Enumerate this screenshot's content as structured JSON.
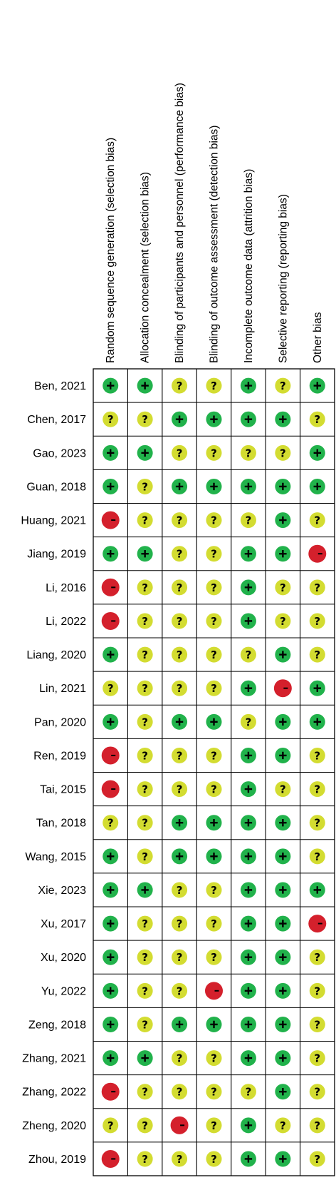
{
  "chart_data": {
    "type": "table",
    "columns": [
      "Random sequence generation (selection bias)",
      "Allocation concealment (selection bias)",
      "Blinding of participants and personnel (performance bias)",
      "Blinding of outcome assessment (detection bias)",
      "Incomplete outcome data (attrition bias)",
      "Selective reporting (reporting bias)",
      "Other bias"
    ],
    "rows": [
      {
        "study": "Ben, 2021",
        "ratings": [
          "+",
          "+",
          "?",
          "?",
          "+",
          "?",
          "+"
        ]
      },
      {
        "study": "Chen, 2017",
        "ratings": [
          "?",
          "?",
          "+",
          "+",
          "+",
          "+",
          "?"
        ]
      },
      {
        "study": "Gao, 2023",
        "ratings": [
          "+",
          "+",
          "?",
          "?",
          "?",
          "?",
          "+"
        ]
      },
      {
        "study": "Guan, 2018",
        "ratings": [
          "+",
          "?",
          "+",
          "+",
          "+",
          "+",
          "+"
        ]
      },
      {
        "study": "Huang, 2021",
        "ratings": [
          "-",
          "?",
          "?",
          "?",
          "?",
          "+",
          "?"
        ]
      },
      {
        "study": "Jiang, 2019",
        "ratings": [
          "+",
          "+",
          "?",
          "?",
          "+",
          "+",
          "-"
        ]
      },
      {
        "study": "Li, 2016",
        "ratings": [
          "-",
          "?",
          "?",
          "?",
          "+",
          "?",
          "?"
        ]
      },
      {
        "study": "Li, 2022",
        "ratings": [
          "-",
          "?",
          "?",
          "?",
          "+",
          "?",
          "?"
        ]
      },
      {
        "study": "Liang, 2020",
        "ratings": [
          "+",
          "?",
          "?",
          "?",
          "?",
          "+",
          "?"
        ]
      },
      {
        "study": "Lin, 2021",
        "ratings": [
          "?",
          "?",
          "?",
          "?",
          "+",
          "-",
          "+"
        ]
      },
      {
        "study": "Pan, 2020",
        "ratings": [
          "+",
          "?",
          "+",
          "+",
          "?",
          "+",
          "+"
        ]
      },
      {
        "study": "Ren, 2019",
        "ratings": [
          "-",
          "?",
          "?",
          "?",
          "+",
          "+",
          "?"
        ]
      },
      {
        "study": "Tai, 2015",
        "ratings": [
          "-",
          "?",
          "?",
          "?",
          "+",
          "?",
          "?"
        ]
      },
      {
        "study": "Tan, 2018",
        "ratings": [
          "?",
          "?",
          "+",
          "+",
          "+",
          "+",
          "?"
        ]
      },
      {
        "study": "Wang, 2015",
        "ratings": [
          "+",
          "?",
          "+",
          "+",
          "+",
          "+",
          "?"
        ]
      },
      {
        "study": "Xie, 2023",
        "ratings": [
          "+",
          "+",
          "?",
          "?",
          "+",
          "+",
          "+"
        ]
      },
      {
        "study": "Xu, 2017",
        "ratings": [
          "+",
          "?",
          "?",
          "?",
          "+",
          "+",
          "-"
        ]
      },
      {
        "study": "Xu, 2020",
        "ratings": [
          "+",
          "?",
          "?",
          "?",
          "+",
          "+",
          "?"
        ]
      },
      {
        "study": "Yu, 2022",
        "ratings": [
          "+",
          "?",
          "?",
          "-",
          "+",
          "+",
          "?"
        ]
      },
      {
        "study": "Zeng, 2018",
        "ratings": [
          "+",
          "?",
          "+",
          "+",
          "+",
          "+",
          "?"
        ]
      },
      {
        "study": "Zhang, 2021",
        "ratings": [
          "+",
          "+",
          "?",
          "?",
          "+",
          "+",
          "?"
        ]
      },
      {
        "study": "Zhang, 2022",
        "ratings": [
          "-",
          "?",
          "?",
          "?",
          "?",
          "+",
          "?"
        ]
      },
      {
        "study": "Zheng, 2020",
        "ratings": [
          "?",
          "?",
          "-",
          "?",
          "+",
          "?",
          "?"
        ]
      },
      {
        "study": "Zhou, 2019",
        "ratings": [
          "-",
          "?",
          "?",
          "?",
          "+",
          "+",
          "?"
        ]
      }
    ],
    "legend_symbols": {
      "+": "low risk",
      "?": "unclear risk",
      "-": "high risk"
    },
    "colors": {
      "low": "#21b24b",
      "unclear": "#d3dc31",
      "high": "#d4202c",
      "symbol": "#000000",
      "grid": "#000000"
    },
    "grid": true
  }
}
